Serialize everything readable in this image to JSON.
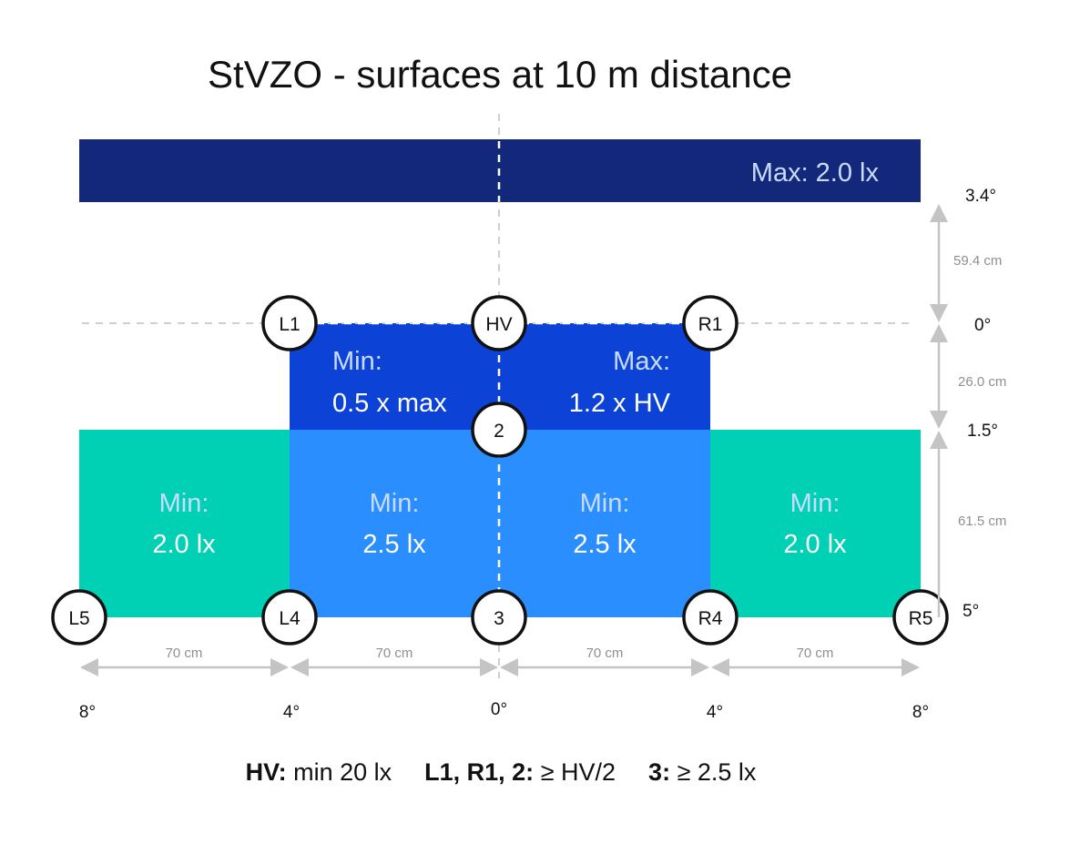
{
  "title": "StVZO - surfaces at 10 m distance",
  "zones": {
    "top_bar": {
      "line1": "Max: 2.0 lx",
      "color": "#13287a"
    },
    "upper_left": {
      "line1": "Min:",
      "line2": "0.5 x max",
      "color": "#0c43d6"
    },
    "upper_right": {
      "line1": "Max:",
      "line2": "1.2 x HV",
      "color": "#0c43d6"
    },
    "center_left": {
      "line1": "Min:",
      "line2": "2.5 lx",
      "color": "#2b8eff"
    },
    "center_right": {
      "line1": "Min:",
      "line2": "2.5 lx",
      "color": "#2b8eff"
    },
    "outer_left": {
      "line1": "Min:",
      "line2": "2.0 lx",
      "color": "#00d1b4"
    },
    "outer_right": {
      "line1": "Min:",
      "line2": "2.0 lx",
      "color": "#00d1b4"
    },
    "label_color": "#c9dcff"
  },
  "points": {
    "L1": "L1",
    "HV": "HV",
    "R1": "R1",
    "p2": "2",
    "L5": "L5",
    "L4": "L4",
    "p3": "3",
    "R4": "R4",
    "R5": "R5"
  },
  "vertical_dims": {
    "d1": "59.4 cm",
    "d2": "26.0 cm",
    "d3": "61.5 cm"
  },
  "vertical_angles": {
    "a1": "3.4°",
    "a2": "0°",
    "a3": "1.5°",
    "a4": "5°"
  },
  "horizontal_dims": {
    "d1": "70 cm",
    "d2": "70 cm",
    "d3": "70 cm",
    "d4": "70 cm"
  },
  "horizontal_angles": {
    "a1": "8°",
    "a2": "4°",
    "a3": "0°",
    "a4": "4°",
    "a5": "8°"
  },
  "legend": {
    "hv_key": "HV:",
    "hv_val": " min 20 lx",
    "l1_key": "L1, R1, 2:",
    "l1_val": " ≥ HV/2",
    "p3_key": "3:",
    "p3_val": " ≥ 2.5 lx"
  }
}
